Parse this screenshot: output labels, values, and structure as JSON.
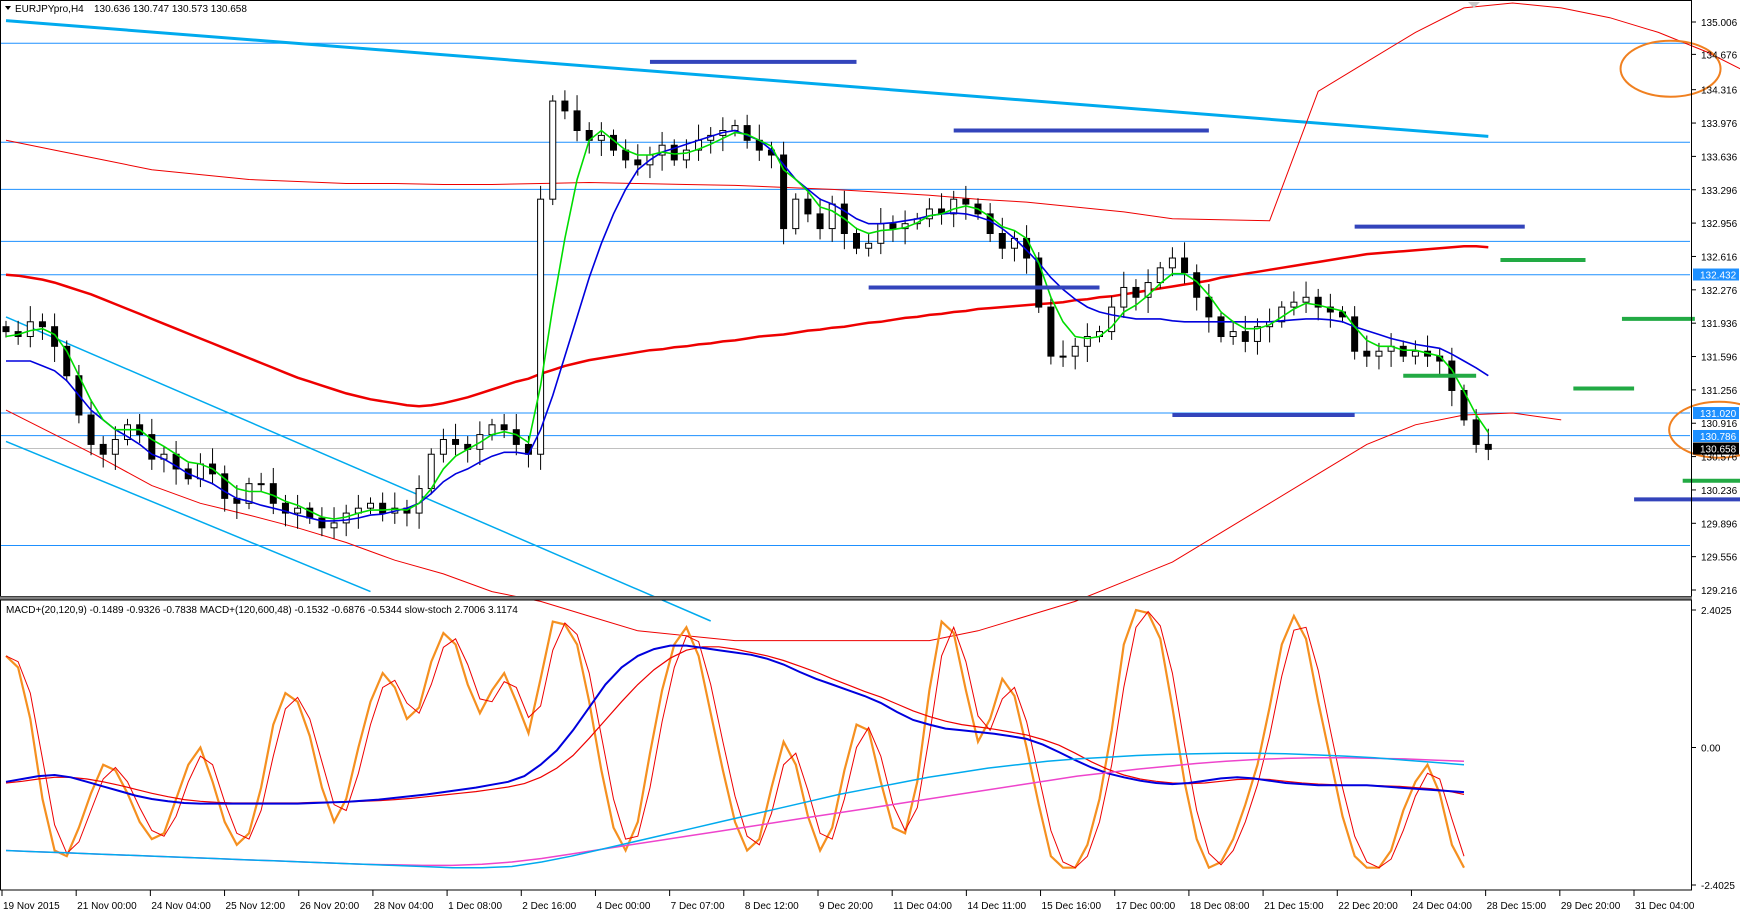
{
  "header": {
    "symbol_info": "EURJPYpro,H4",
    "ohlc": "130.636 130.747 130.573 130.658"
  },
  "indicator_info": "MACD+(20,120,9) -0.1489 -0.9326 -0.7838  MACD+(120,600,48) -0.1532 -0.6876 -0.5344  slow-stoch 2.7006 3.1174",
  "colors": {
    "background": "#ffffff",
    "grid_hline": "#1e90ff",
    "candle": "#000000",
    "ma_green": "#00dd00",
    "ma_blue": "#0000dd",
    "ma_red": "#ee0000",
    "trend_cyan": "#00aaee",
    "support_blue": "#3344bb",
    "support_green": "#22aa44",
    "circle_orange": "#f08020",
    "stoch_orange": "#f59020",
    "macd_magenta": "#ee44cc",
    "label_highlight": "#1e90ff"
  },
  "chart_data": {
    "type": "candlestick",
    "symbol": "EURJPYpro",
    "timeframe": "H4",
    "price_axis": {
      "ylim": [
        129.216,
        135.006
      ],
      "ticks": [
        "135.006",
        "134.676",
        "134.316",
        "133.976",
        "133.636",
        "133.296",
        "132.956",
        "132.616",
        "132.276",
        "131.936",
        "131.596",
        "131.256",
        "130.916",
        "130.576",
        "130.236",
        "129.896",
        "129.556",
        "129.216"
      ]
    },
    "price_labels": [
      {
        "value": "132.432",
        "highlight": true
      },
      {
        "value": "131.020",
        "highlight": true
      },
      {
        "value": "130.786",
        "highlight": true
      },
      {
        "value": "130.658",
        "highlight": false,
        "current": true
      }
    ],
    "horizontal_levels": [
      134.79,
      133.78,
      133.3,
      132.77,
      132.43,
      131.02,
      130.79,
      129.67
    ],
    "time_axis": [
      "19 Nov 2015",
      "21 Nov 00:00",
      "24 Nov 04:00",
      "25 Nov 12:00",
      "26 Nov 20:00",
      "28 Nov 04:00",
      "1 Dec 08:00",
      "2 Dec 16:00",
      "4 Dec 00:00",
      "7 Dec 07:00",
      "8 Dec 12:00",
      "9 Dec 20:00",
      "11 Dec 04:00",
      "14 Dec 11:00",
      "15 Dec 16:00",
      "17 Dec 00:00",
      "18 Dec 08:00",
      "21 Dec 15:00",
      "22 Dec 20:00",
      "24 Dec 04:00",
      "28 Dec 15:00",
      "29 Dec 20:00",
      "31 Dec 04:00"
    ],
    "close_path": [
      131.85,
      131.8,
      131.95,
      131.9,
      131.7,
      131.4,
      131.0,
      130.7,
      130.6,
      130.75,
      130.9,
      130.8,
      130.55,
      130.6,
      130.45,
      130.35,
      130.5,
      130.4,
      130.15,
      130.1,
      130.3,
      130.3,
      130.1,
      130.0,
      130.05,
      129.95,
      129.85,
      129.9,
      130.0,
      130.05,
      130.1,
      130.0,
      130.05,
      130.0,
      130.25,
      130.6,
      130.75,
      130.7,
      130.65,
      130.8,
      130.9,
      130.85,
      130.7,
      130.6,
      133.2,
      134.2,
      134.1,
      133.9,
      133.8,
      133.85,
      133.7,
      133.6,
      133.55,
      133.65,
      133.75,
      133.6,
      133.7,
      133.8,
      133.85,
      133.9,
      133.95,
      133.8,
      133.7,
      133.65,
      132.9,
      133.2,
      133.05,
      132.9,
      133.15,
      132.85,
      132.7,
      132.75,
      132.95,
      132.9,
      132.95,
      133.0,
      133.1,
      133.05,
      133.2,
      133.15,
      133.05,
      132.85,
      132.7,
      132.8,
      132.6,
      132.1,
      131.6,
      131.6,
      131.7,
      131.8,
      131.85,
      132.1,
      132.3,
      132.2,
      132.35,
      132.5,
      132.6,
      132.45,
      132.2,
      132.0,
      131.8,
      131.85,
      131.75,
      131.9,
      131.95,
      132.1,
      132.15,
      132.2,
      132.1,
      132.05,
      132.0,
      131.65,
      131.6,
      131.65,
      131.7,
      131.6,
      131.65,
      131.6,
      131.55,
      131.25,
      130.95,
      130.7,
      130.65
    ],
    "ma_fast": [
      131.8,
      131.82,
      131.86,
      131.88,
      131.82,
      131.65,
      131.4,
      131.15,
      130.95,
      130.85,
      130.85,
      130.85,
      130.75,
      130.68,
      130.6,
      130.52,
      130.5,
      130.45,
      130.35,
      130.25,
      130.22,
      130.22,
      130.18,
      130.12,
      130.08,
      130.02,
      129.96,
      129.94,
      129.96,
      130.0,
      130.03,
      130.03,
      130.04,
      130.03,
      130.1,
      130.25,
      130.45,
      130.58,
      130.65,
      130.72,
      130.8,
      130.83,
      130.8,
      130.72,
      131.3,
      132.1,
      132.8,
      133.4,
      133.8,
      133.9,
      133.8,
      133.7,
      133.65,
      133.65,
      133.68,
      133.66,
      133.67,
      133.71,
      133.76,
      133.82,
      133.88,
      133.86,
      133.8,
      133.74,
      133.5,
      133.4,
      133.28,
      133.12,
      133.08,
      133.0,
      132.9,
      132.85,
      132.88,
      132.89,
      132.91,
      132.96,
      133.03,
      133.05,
      133.1,
      133.13,
      133.1,
      133.02,
      132.92,
      132.88,
      132.8,
      132.55,
      132.2,
      131.95,
      131.8,
      131.78,
      131.8,
      131.9,
      132.05,
      132.12,
      132.22,
      132.34,
      132.44,
      132.44,
      132.36,
      132.22,
      132.05,
      131.95,
      131.88,
      131.88,
      131.92,
      132.0,
      132.08,
      132.14,
      132.12,
      132.09,
      132.06,
      131.9,
      131.76,
      131.7,
      131.7,
      131.66,
      131.66,
      131.63,
      131.6,
      131.46,
      131.24,
      131.0,
      130.82
    ],
    "ma_slow": [
      131.55,
      131.55,
      131.55,
      131.5,
      131.45,
      131.35,
      131.2,
      131.05,
      130.95,
      130.85,
      130.78,
      130.7,
      130.6,
      130.55,
      130.48,
      130.4,
      130.35,
      130.3,
      130.22,
      130.15,
      130.12,
      130.08,
      130.05,
      130.02,
      129.98,
      129.95,
      129.92,
      129.92,
      129.93,
      129.95,
      129.98,
      129.99,
      130.02,
      130.05,
      130.1,
      130.2,
      130.32,
      130.4,
      130.45,
      130.52,
      130.58,
      130.62,
      130.62,
      130.6,
      130.85,
      131.2,
      131.6,
      132.0,
      132.4,
      132.75,
      133.05,
      133.3,
      133.5,
      133.6,
      133.68,
      133.72,
      133.76,
      133.8,
      133.84,
      133.88,
      133.9,
      133.85,
      133.8,
      133.7,
      133.55,
      133.4,
      133.3,
      133.2,
      133.15,
      133.08,
      133.0,
      132.95,
      132.95,
      132.96,
      132.98,
      133.0,
      133.03,
      133.05,
      133.06,
      133.05,
      133.02,
      132.98,
      132.9,
      132.8,
      132.68,
      132.55,
      132.4,
      132.28,
      132.18,
      132.1,
      132.05,
      132.02,
      132.0,
      131.98,
      131.98,
      131.98,
      131.96,
      131.95,
      131.95,
      131.95,
      131.95,
      131.95,
      131.95,
      131.95,
      131.95,
      131.96,
      131.97,
      131.98,
      131.98,
      131.97,
      131.95,
      131.9,
      131.86,
      131.82,
      131.78,
      131.75,
      131.72,
      131.7,
      131.68,
      131.62,
      131.55,
      131.48,
      131.4
    ],
    "ma_200": [
      132.43,
      132.42,
      132.4,
      132.38,
      132.35,
      132.31,
      132.27,
      132.23,
      132.18,
      132.13,
      132.08,
      132.03,
      131.98,
      131.93,
      131.88,
      131.83,
      131.78,
      131.73,
      131.68,
      131.63,
      131.58,
      131.53,
      131.48,
      131.43,
      131.38,
      131.34,
      131.3,
      131.26,
      131.22,
      131.19,
      131.16,
      131.14,
      131.12,
      131.1,
      131.09,
      131.1,
      131.12,
      131.15,
      131.18,
      131.22,
      131.26,
      131.3,
      131.34,
      131.37,
      131.42,
      131.46,
      131.5,
      131.53,
      131.56,
      131.58,
      131.6,
      131.62,
      131.64,
      131.66,
      131.67,
      131.69,
      131.7,
      131.72,
      131.73,
      131.75,
      131.76,
      131.78,
      131.8,
      131.81,
      131.82,
      131.84,
      131.86,
      131.87,
      131.89,
      131.9,
      131.92,
      131.94,
      131.95,
      131.97,
      131.99,
      132.0,
      132.02,
      132.03,
      132.05,
      132.06,
      132.08,
      132.09,
      132.1,
      132.11,
      132.12,
      132.13,
      132.14,
      132.15,
      132.17,
      132.18,
      132.2,
      132.21,
      132.23,
      132.25,
      132.27,
      132.29,
      132.31,
      132.33,
      132.35,
      132.37,
      132.4,
      132.42,
      132.44,
      132.46,
      132.48,
      132.5,
      132.52,
      132.54,
      132.56,
      132.58,
      132.6,
      132.62,
      132.64,
      132.65,
      132.66,
      132.67,
      132.68,
      132.69,
      132.7,
      132.71,
      132.72,
      132.72,
      132.71
    ],
    "bb_upper": [
      133.8,
      133.7,
      133.6,
      133.5,
      133.45,
      133.4,
      133.38,
      133.36,
      133.36,
      133.35,
      133.35,
      133.36,
      133.37,
      133.36,
      133.35,
      133.34,
      133.32,
      133.3,
      133.27,
      133.24,
      133.2,
      133.17,
      133.12,
      133.07,
      133.0,
      132.99,
      132.98,
      134.3,
      134.6,
      134.9,
      135.15,
      135.2,
      135.15,
      135.05,
      134.9,
      134.7,
      134.45
    ],
    "bb_lower": [
      131.05,
      130.8,
      130.55,
      130.28,
      130.1,
      129.98,
      129.85,
      129.7,
      129.52,
      129.38,
      129.2,
      129.1,
      128.95,
      128.8,
      128.75,
      128.7,
      128.7,
      128.7,
      128.7,
      128.7,
      128.8,
      128.95,
      129.1,
      129.3,
      129.5,
      129.8,
      130.1,
      130.4,
      130.7,
      130.9,
      131.0,
      131.02,
      130.95
    ],
    "trendlines": [
      {
        "name": "upper-channel",
        "from": [
          0,
          135.02
        ],
        "to": [
          122,
          133.84
        ]
      },
      {
        "name": "channel-top",
        "from": [
          0,
          132.0
        ],
        "to": [
          58,
          128.9
        ]
      },
      {
        "name": "channel-bottom",
        "from": [
          0,
          130.73
        ],
        "to": [
          30,
          129.2
        ]
      }
    ],
    "support_lines_blue": [
      [
        134.6,
        53,
        70
      ],
      [
        133.9,
        78,
        99
      ],
      [
        132.3,
        71,
        90
      ],
      [
        131.0,
        96,
        111
      ],
      [
        132.92,
        111,
        125
      ],
      [
        130.14,
        134,
        146
      ]
    ],
    "support_lines_green": [
      [
        132.58,
        123,
        130
      ],
      [
        131.98,
        133,
        139
      ],
      [
        131.4,
        115,
        121
      ],
      [
        131.27,
        129,
        134
      ],
      [
        130.33,
        138,
        144
      ]
    ],
    "circles": [
      [
        134.53,
        137
      ],
      [
        130.85,
        141
      ]
    ],
    "subchart": {
      "ylim": [
        -2.4025,
        2.4025
      ],
      "ticks": [
        "2.4025",
        "0.00",
        "-2.4025"
      ],
      "stoch": [
        1.6,
        1.4,
        0.5,
        -0.9,
        -1.8,
        -1.9,
        -1.4,
        -0.8,
        -0.3,
        -0.4,
        -0.8,
        -1.3,
        -1.6,
        -1.5,
        -0.9,
        -0.3,
        0.0,
        -0.6,
        -1.3,
        -1.7,
        -1.5,
        -0.7,
        0.4,
        0.95,
        0.8,
        0.2,
        -0.7,
        -1.3,
        -0.9,
        0.0,
        0.8,
        1.3,
        1.05,
        0.5,
        0.7,
        1.5,
        2.0,
        1.8,
        1.1,
        0.6,
        1.0,
        1.3,
        0.8,
        0.25,
        1.2,
        2.2,
        2.15,
        1.8,
        0.8,
        -0.4,
        -1.4,
        -1.8,
        -1.3,
        -0.1,
        1.0,
        1.8,
        2.1,
        1.6,
        0.6,
        -0.4,
        -1.3,
        -1.8,
        -1.6,
        -0.7,
        0.1,
        -0.3,
        -1.2,
        -1.8,
        -1.4,
        -0.4,
        0.4,
        0.3,
        -0.6,
        -1.4,
        -1.5,
        -0.6,
        1.0,
        2.2,
        2.0,
        1.0,
        0.1,
        0.5,
        1.2,
        0.9,
        0.0,
        -1.0,
        -1.9,
        -2.1,
        -2.1,
        -1.7,
        -0.9,
        0.3,
        1.8,
        2.4,
        2.35,
        1.9,
        0.7,
        -0.6,
        -1.6,
        -2.1,
        -2.0,
        -1.6,
        -1.0,
        -0.3,
        0.7,
        1.8,
        2.3,
        1.9,
        0.8,
        -0.2,
        -1.2,
        -1.9,
        -2.1,
        -2.1,
        -1.8,
        -1.1,
        -0.6,
        -0.3,
        -0.8,
        -1.7,
        -2.1
      ],
      "macd_blue": [
        -0.6,
        -0.55,
        -0.5,
        -0.48,
        -0.52,
        -0.6,
        -0.68,
        -0.76,
        -0.84,
        -0.9,
        -0.94,
        -0.97,
        -0.98,
        -0.98,
        -0.98,
        -0.98,
        -0.98,
        -0.98,
        -0.98,
        -0.97,
        -0.96,
        -0.95,
        -0.93,
        -0.91,
        -0.88,
        -0.85,
        -0.82,
        -0.78,
        -0.74,
        -0.7,
        -0.65,
        -0.6,
        -0.5,
        -0.3,
        -0.05,
        0.3,
        0.7,
        1.1,
        1.4,
        1.6,
        1.72,
        1.78,
        1.78,
        1.74,
        1.7,
        1.66,
        1.62,
        1.55,
        1.45,
        1.32,
        1.2,
        1.1,
        1.0,
        0.9,
        0.78,
        0.62,
        0.48,
        0.4,
        0.33,
        0.3,
        0.27,
        0.24,
        0.2,
        0.15,
        0.05,
        -0.08,
        -0.22,
        -0.35,
        -0.45,
        -0.52,
        -0.58,
        -0.62,
        -0.64,
        -0.62,
        -0.58,
        -0.54,
        -0.52,
        -0.54,
        -0.58,
        -0.62,
        -0.64,
        -0.66,
        -0.66,
        -0.66,
        -0.66,
        -0.68,
        -0.7,
        -0.72,
        -0.74,
        -0.76,
        -0.78
      ],
      "macd_red": [
        -0.62,
        -0.59,
        -0.55,
        -0.52,
        -0.52,
        -0.55,
        -0.6,
        -0.66,
        -0.73,
        -0.8,
        -0.86,
        -0.91,
        -0.94,
        -0.96,
        -0.97,
        -0.97,
        -0.97,
        -0.97,
        -0.97,
        -0.96,
        -0.96,
        -0.95,
        -0.94,
        -0.93,
        -0.91,
        -0.89,
        -0.86,
        -0.83,
        -0.8,
        -0.77,
        -0.73,
        -0.69,
        -0.63,
        -0.52,
        -0.36,
        -0.14,
        0.16,
        0.48,
        0.8,
        1.1,
        1.36,
        1.56,
        1.7,
        1.76,
        1.76,
        1.72,
        1.66,
        1.6,
        1.52,
        1.42,
        1.32,
        1.2,
        1.09,
        0.98,
        0.88,
        0.76,
        0.64,
        0.54,
        0.46,
        0.4,
        0.36,
        0.32,
        0.27,
        0.22,
        0.14,
        0.04,
        -0.1,
        -0.25,
        -0.38,
        -0.48,
        -0.55,
        -0.59,
        -0.62,
        -0.63,
        -0.62,
        -0.59,
        -0.56,
        -0.55,
        -0.56,
        -0.59,
        -0.62,
        -0.64,
        -0.65,
        -0.66,
        -0.66,
        -0.67,
        -0.68,
        -0.7,
        -0.72,
        -0.76,
        -0.82
      ],
      "macd_cyan": [
        -1.8,
        -1.82,
        -1.84,
        -1.86,
        -1.88,
        -1.9,
        -1.92,
        -1.94,
        -1.96,
        -1.98,
        -2.0,
        -2.02,
        -2.04,
        -2.06,
        -2.08,
        -2.1,
        -2.1,
        -2.08,
        -2.0,
        -1.9,
        -1.78,
        -1.66,
        -1.54,
        -1.42,
        -1.3,
        -1.18,
        -1.06,
        -0.94,
        -0.82,
        -0.72,
        -0.62,
        -0.52,
        -0.44,
        -0.36,
        -0.3,
        -0.24,
        -0.2,
        -0.17,
        -0.14,
        -0.12,
        -0.11,
        -0.1,
        -0.1,
        -0.11,
        -0.13,
        -0.15,
        -0.18,
        -0.22,
        -0.26,
        -0.3
      ],
      "macd_magenta": [
        -1.8,
        -1.82,
        -1.84,
        -1.86,
        -1.88,
        -1.9,
        -1.92,
        -1.94,
        -1.96,
        -1.98,
        -2.0,
        -2.02,
        -2.04,
        -2.05,
        -2.06,
        -2.06,
        -2.04,
        -2.0,
        -1.94,
        -1.86,
        -1.78,
        -1.7,
        -1.62,
        -1.54,
        -1.46,
        -1.38,
        -1.3,
        -1.22,
        -1.14,
        -1.06,
        -0.98,
        -0.9,
        -0.82,
        -0.74,
        -0.66,
        -0.58,
        -0.5,
        -0.44,
        -0.38,
        -0.33,
        -0.28,
        -0.24,
        -0.21,
        -0.19,
        -0.18,
        -0.18,
        -0.19,
        -0.2,
        -0.22,
        -0.24
      ]
    }
  }
}
